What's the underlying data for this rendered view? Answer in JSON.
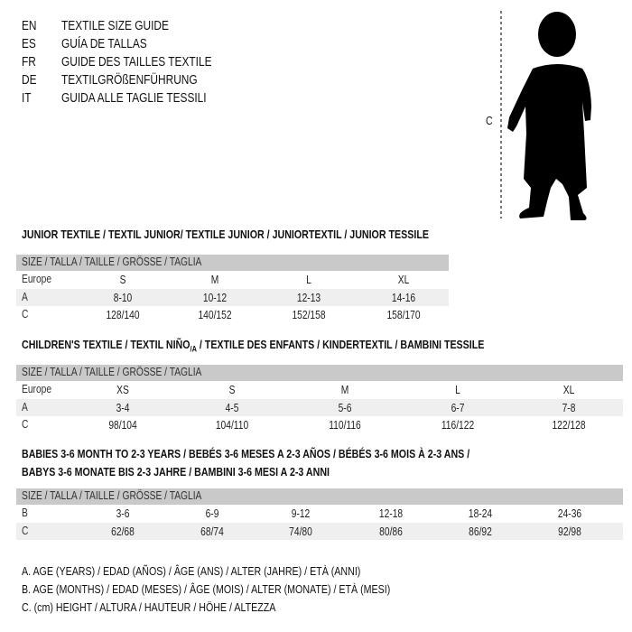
{
  "languages": [
    {
      "code": "EN",
      "title": "TEXTILE SIZE GUIDE"
    },
    {
      "code": "ES",
      "title": "GUÍA DE TALLAS"
    },
    {
      "code": "FR",
      "title": "GUIDE DES TAILLES TEXTILE"
    },
    {
      "code": "DE",
      "title": "TEXTILGRÖßENFÜHRUNG"
    },
    {
      "code": "IT",
      "title": "GUIDA ALLE TAGLIE TESSILI"
    }
  ],
  "figure": {
    "label": "C",
    "icon": "child-silhouette"
  },
  "size_header": "SIZE / TALLA / TAILLE / GRÖSSE / TAGLIA",
  "junior": {
    "title": "JUNIOR TEXTILE / TEXTIL JUNIOR/ TEXTILE JUNIOR / JUNIORTEXTIL / JUNIOR TESSILE",
    "rows": [
      {
        "label": "Europe",
        "values": [
          "S",
          "M",
          "L",
          "XL"
        ]
      },
      {
        "label": "A",
        "values": [
          "8-10",
          "10-12",
          "12-13",
          "14-16"
        ]
      },
      {
        "label": "C",
        "values": [
          "128/140",
          "140/152",
          "152/158",
          "158/170"
        ]
      }
    ]
  },
  "children": {
    "title": "CHILDREN'S TEXTILE / TEXTIL NIÑO",
    "title_sub": "/A",
    "title_rest": " / TEXTILE DES ENFANTS / KINDERTEXTIL / BAMBINI TESSILE",
    "rows": [
      {
        "label": "Europe",
        "values": [
          "XS",
          "S",
          "M",
          "L",
          "XL"
        ]
      },
      {
        "label": "A",
        "values": [
          "3-4",
          "4-5",
          "5-6",
          "6-7",
          "7-8"
        ]
      },
      {
        "label": "C",
        "values": [
          "98/104",
          "104/110",
          "110/116",
          "116/122",
          "122/128"
        ]
      }
    ]
  },
  "babies": {
    "title_line1": "BABIES 3-6 MONTH TO 2-3 YEARS / BEBÉS 3-6 MESES A 2-3 AÑOS / BÉBÉS 3-6 MOIS À 2-3 ANS /",
    "title_line2": "BABYS 3-6 MONATE BIS 2-3 JAHRE / BAMBINI 3-6 MESI A 2-3 ANNI",
    "rows": [
      {
        "label": "B",
        "values": [
          "3-6",
          "6-9",
          "9-12",
          "12-18",
          "18-24",
          "24-36"
        ]
      },
      {
        "label": "C",
        "values": [
          "62/68",
          "68/74",
          "74/80",
          "80/86",
          "86/92",
          "92/98"
        ]
      }
    ]
  },
  "legend": [
    "A. AGE (YEARS) / EDAD (AÑOS) / ÂGE (ANS) / ALTER (JAHRE) / ETÀ (ANNI)",
    "B. AGE (MONTHS) / EDAD (MESES) / ÂGE (MOIS) / ALTER (MONATE) / ETÀ (MESI)",
    "C. (cm) HEIGHT / ALTURA / HAUTEUR / HÖHE / ALTEZZA"
  ]
}
